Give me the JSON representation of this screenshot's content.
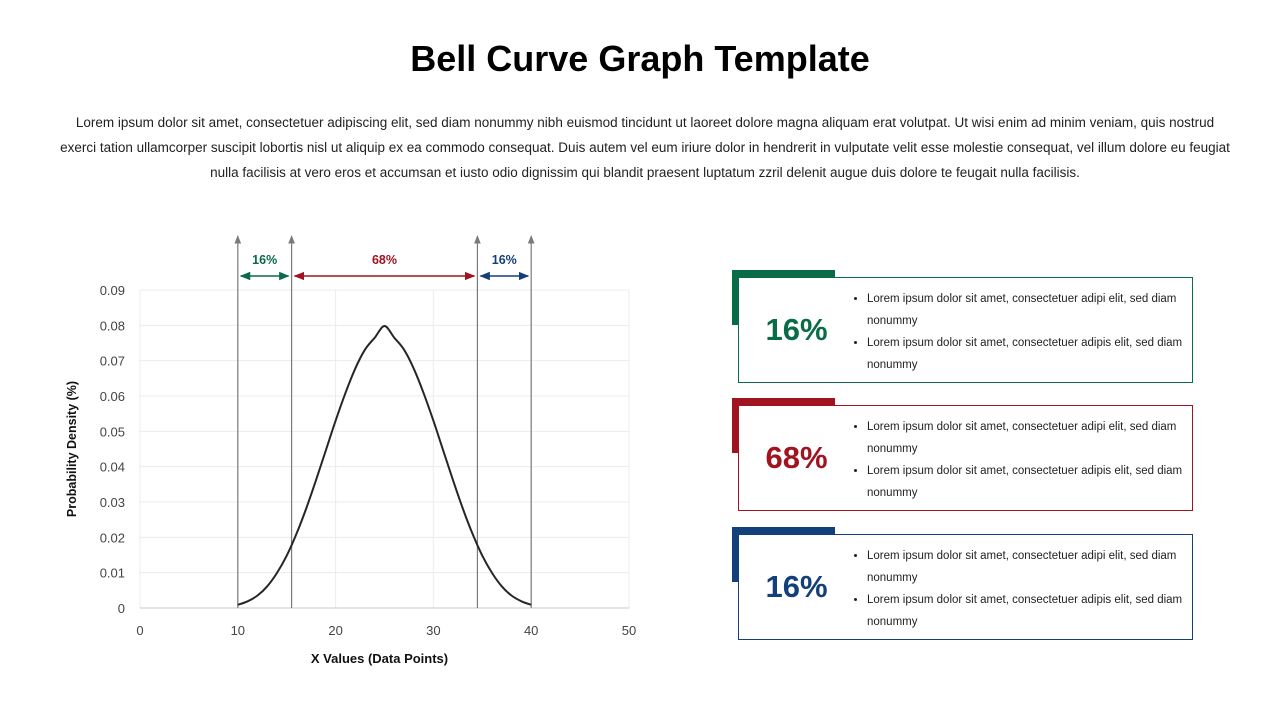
{
  "page": {
    "title": "Bell Curve Graph Template",
    "intro": "Lorem ipsum dolor sit amet, consectetuer adipiscing elit, sed diam nonummy nibh euismod tincidunt ut laoreet dolore magna aliquam erat volutpat. Ut wisi enim ad minim veniam, quis nostrud exerci tation ullamcorper suscipit lobortis nisl ut aliquip ex ea commodo consequat. Duis autem vel eum iriure dolor in hendrerit in vulputate velit esse molestie consequat, vel illum dolore eu feugiat nulla facilisis at vero eros et accumsan et iusto odio dignissim qui blandit praesent luptatum zzril delenit augue duis dolore te feugait nulla facilisis."
  },
  "chart_data": {
    "type": "line",
    "xlabel": "X Values (Data Points)",
    "ylabel": "Probability Density (%)",
    "xlim": [
      0,
      50
    ],
    "ylim": [
      0,
      0.09
    ],
    "xticks": [
      "0",
      "10",
      "20",
      "30",
      "40",
      "50"
    ],
    "yticks": [
      "0",
      "0.01",
      "0.02",
      "0.03",
      "0.04",
      "0.05",
      "0.06",
      "0.07",
      "0.08",
      "0.09"
    ],
    "grid": true,
    "series": [
      {
        "x": [
          10,
          11,
          12,
          13,
          14,
          15,
          16,
          17,
          18,
          19,
          20,
          21,
          22,
          23,
          24,
          25,
          26,
          27,
          28,
          29,
          30,
          31,
          32,
          33,
          34,
          35,
          36,
          37,
          38,
          39,
          40
        ],
        "values": [
          0.0009,
          0.0019,
          0.0035,
          0.0061,
          0.0099,
          0.0148,
          0.021,
          0.0282,
          0.0362,
          0.0446,
          0.053,
          0.0608,
          0.0677,
          0.0731,
          0.0765,
          0.0798,
          0.0765,
          0.0731,
          0.0677,
          0.0608,
          0.053,
          0.0446,
          0.0362,
          0.0282,
          0.021,
          0.0148,
          0.0099,
          0.0061,
          0.0035,
          0.0019,
          0.0009
        ],
        "color": "#262626"
      }
    ],
    "markers": [
      10,
      15.5,
      34.5,
      40
    ],
    "ranges": [
      {
        "label": "16%",
        "from": 10,
        "to": 15.5,
        "color": "#0a6b47"
      },
      {
        "label": "68%",
        "from": 15.5,
        "to": 34.5,
        "color": "#a0131f"
      },
      {
        "label": "16%",
        "from": 34.5,
        "to": 40,
        "color": "#133f7a"
      }
    ]
  },
  "cards": [
    {
      "pct": "16%",
      "color": "#0a6b47",
      "bullets": [
        "Lorem ipsum dolor sit amet, consectetuer adipi elit, sed diam nonummy",
        "Lorem ipsum dolor sit amet, consectetuer adipis elit, sed diam nonummy"
      ]
    },
    {
      "pct": "68%",
      "color": "#a0131f",
      "bullets": [
        "Lorem ipsum dolor sit amet, consectetuer adipi elit, sed diam nonummy",
        "Lorem ipsum dolor sit amet, consectetuer adipis elit, sed diam nonummy"
      ]
    },
    {
      "pct": "16%",
      "color": "#133f7a",
      "bullets": [
        "Lorem ipsum dolor sit amet, consectetuer adipi elit, sed diam nonummy",
        "Lorem ipsum dolor sit amet, consectetuer adipis elit, sed diam nonummy"
      ]
    }
  ]
}
